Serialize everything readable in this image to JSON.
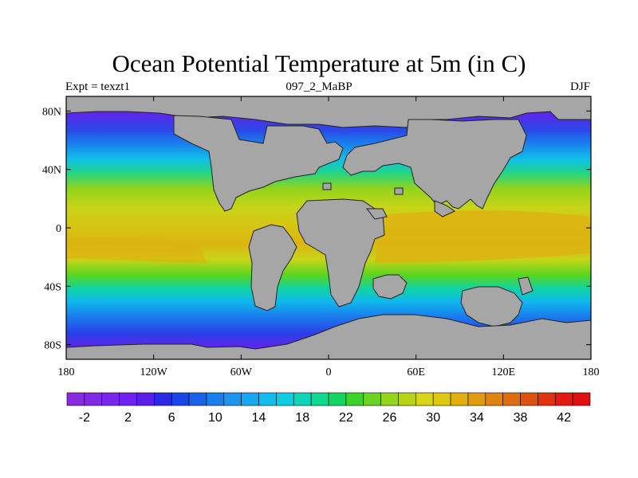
{
  "header": {
    "title": "Ocean Potential Temperature at 5m (in C)",
    "left": "Expt = texzt1",
    "center": "097_2_MaBP",
    "right": "DJF"
  },
  "map": {
    "x_ticks": [
      "180",
      "120W",
      "60W",
      "0",
      "60E",
      "120E",
      "180"
    ],
    "x_tick_values": [
      -180,
      -120,
      -60,
      0,
      60,
      120,
      180
    ],
    "y_ticks": [
      "80N",
      "40N",
      "0",
      "40S",
      "80S"
    ],
    "y_tick_values": [
      80,
      40,
      0,
      -40,
      -80
    ],
    "lon_range": [
      -180,
      180
    ],
    "lat_range": [
      -90,
      90
    ],
    "land_color": "#a6a6a6"
  },
  "colorbar": {
    "labels": [
      "-2",
      "2",
      "6",
      "10",
      "14",
      "18",
      "22",
      "26",
      "30",
      "34",
      "38",
      "42"
    ],
    "colors": [
      "#8a2be2",
      "#8228e8",
      "#7a26ec",
      "#7020f0",
      "#5a1ee8",
      "#2a2ae6",
      "#1a46e8",
      "#1a62ea",
      "#1a7ef0",
      "#1a96ee",
      "#14a8ee",
      "#10bcf0",
      "#10cce0",
      "#10d4b8",
      "#10d890",
      "#14d464",
      "#3ad428",
      "#6cd420",
      "#96d41c",
      "#b8d418",
      "#d8d418",
      "#e0c810",
      "#e0b010",
      "#e09a10",
      "#e08410",
      "#e06c10",
      "#e05010",
      "#e03410",
      "#e01c10",
      "#e01010"
    ]
  }
}
